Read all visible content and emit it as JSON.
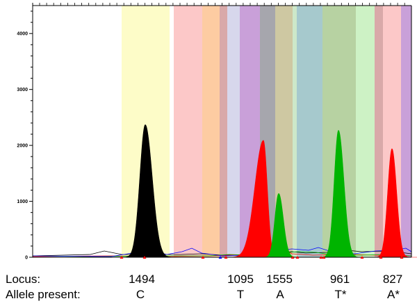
{
  "chart_data": {
    "type": "area",
    "title": "",
    "xlabel": "",
    "ylabel": "",
    "ylim": [
      0,
      4500
    ],
    "yticks": [
      "0",
      "1000",
      "2000",
      "3000",
      "4000"
    ],
    "grid": false,
    "bands": [
      {
        "color": "#fdfcc8",
        "from": 175,
        "to": 244
      },
      {
        "color": "#fcc8c8",
        "from": 250,
        "to": 291
      },
      {
        "color": "#fdcca2",
        "from": 291,
        "to": 316
      },
      {
        "color": "#d9a9a9",
        "from": 316,
        "to": 327
      },
      {
        "color": "#d7d7ec",
        "from": 327,
        "to": 345
      },
      {
        "color": "#c9a0d9",
        "from": 345,
        "to": 374
      },
      {
        "color": "#a6a6ad",
        "from": 374,
        "to": 396
      },
      {
        "color": "#cec8a2",
        "from": 396,
        "to": 421
      },
      {
        "color": "#cde8c9",
        "from": 421,
        "to": 427
      },
      {
        "color": "#a6c9cd",
        "from": 427,
        "to": 464
      },
      {
        "color": "#b7d2a2",
        "from": 464,
        "to": 512
      },
      {
        "color": "#cdf2c5",
        "from": 512,
        "to": 539
      },
      {
        "color": "#d9a9a9",
        "from": 539,
        "to": 551
      },
      {
        "color": "#fcc8c8",
        "from": 551,
        "to": 577
      },
      {
        "color": "#c9a0d9",
        "from": 577,
        "to": 592
      }
    ],
    "peaks": [
      {
        "color": "#000000",
        "center": 209,
        "height": 2370,
        "wl": 14,
        "wr": 18
      },
      {
        "color": "#ff0000",
        "center": 379,
        "height": 2090,
        "wl": 22,
        "wr": 10
      },
      {
        "color": "#00b400",
        "center": 401,
        "height": 1140,
        "wl": 10,
        "wr": 12
      },
      {
        "color": "#00b400",
        "center": 487,
        "height": 2270,
        "wl": 11,
        "wr": 14
      },
      {
        "color": "#ff0000",
        "center": 564,
        "height": 1940,
        "wl": 11,
        "wr": 12
      }
    ],
    "series": [
      {
        "color": "#000000"
      },
      {
        "color": "#ff0000"
      },
      {
        "color": "#00b400"
      },
      {
        "color": "#0000ff"
      }
    ]
  },
  "table": {
    "locus_title": "Locus:",
    "allele_title": "Allele present:",
    "columns": [
      {
        "locus": "1494",
        "allele": "C"
      },
      {
        "locus": "1095",
        "allele": "T"
      },
      {
        "locus": "1555",
        "allele": "A"
      },
      {
        "locus": "961",
        "allele": "T*"
      },
      {
        "locus": "827",
        "allele": "A*"
      }
    ]
  }
}
